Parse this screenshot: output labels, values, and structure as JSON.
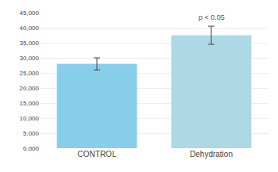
{
  "chart_data": {
    "type": "bar",
    "categories": [
      "CONTROL",
      "Dehydration"
    ],
    "values": [
      28000,
      37500
    ],
    "errors_pos": [
      2000,
      3000
    ],
    "errors_neg": [
      2000,
      3000
    ],
    "colors": [
      "#87CEEB",
      "#ADD8E6"
    ],
    "ylim": [
      0,
      45000
    ],
    "yticks": [
      {
        "value": 0,
        "label": "0.000"
      },
      {
        "value": 5000,
        "label": "5,000"
      },
      {
        "value": 10000,
        "label": "10,000"
      },
      {
        "value": 15000,
        "label": "15,000"
      },
      {
        "value": 20000,
        "label": "20,000"
      },
      {
        "value": 25000,
        "label": "25,000"
      },
      {
        "value": 30000,
        "label": "30,000"
      },
      {
        "value": 35000,
        "label": "35,000"
      },
      {
        "value": 40000,
        "label": "40,000"
      },
      {
        "value": 45000,
        "label": "45,000"
      }
    ],
    "annotations": [
      {
        "text": "p < 0.05",
        "x": "Dehydration",
        "y": 43500
      }
    ],
    "grid": true
  }
}
